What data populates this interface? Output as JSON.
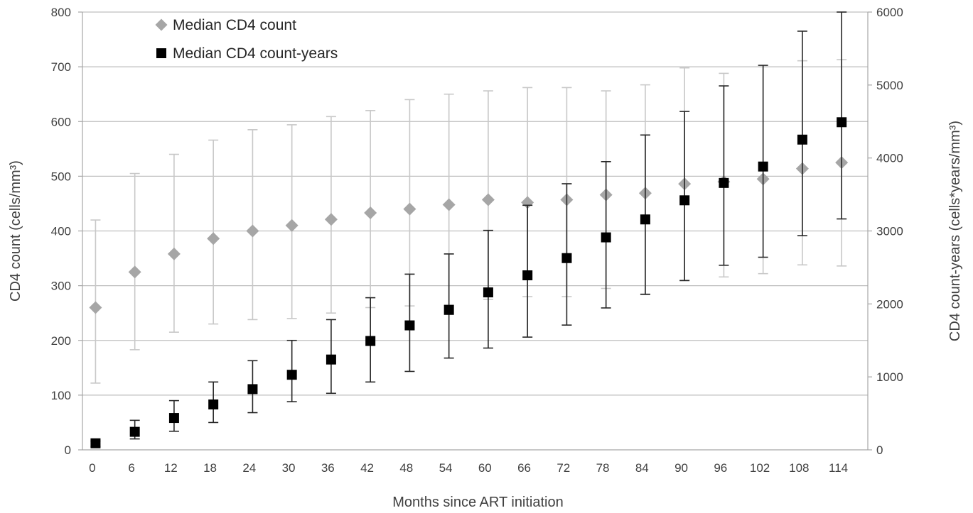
{
  "chart_data": {
    "type": "scatter",
    "xlabel": "Months since ART initiation",
    "ylabel_left": "CD4 count (cells/mm³)",
    "ylabel_right": "CD4 count-years (cells*years/mm³)",
    "x_ticks": [
      0,
      6,
      12,
      18,
      24,
      30,
      36,
      42,
      48,
      54,
      60,
      66,
      72,
      78,
      84,
      90,
      96,
      102,
      108,
      114
    ],
    "xlim": [
      0,
      120
    ],
    "ylim_left": [
      0,
      800
    ],
    "ylim_right": [
      0,
      6000
    ],
    "y_ticks_left": [
      0,
      100,
      200,
      300,
      400,
      500,
      600,
      700,
      800
    ],
    "y_ticks_right": [
      0,
      1000,
      2000,
      3000,
      4000,
      5000,
      6000
    ],
    "grid": true,
    "legend_position": "top-left",
    "series": [
      {
        "name": "Median CD4 count",
        "axis": "left",
        "marker": "diamond",
        "color": "#a6a6a6",
        "error_color": "#c8c8c8",
        "x": [
          2,
          8,
          14,
          20,
          26,
          32,
          38,
          44,
          50,
          56,
          62,
          68,
          74,
          80,
          86,
          92,
          98,
          104,
          110,
          116
        ],
        "y": [
          260,
          325,
          358,
          386,
          400,
          410,
          421,
          433,
          440,
          448,
          457,
          452,
          457,
          466,
          469,
          486,
          490,
          495,
          514,
          525
        ],
        "lower": [
          122,
          183,
          215,
          230,
          238,
          240,
          250,
          260,
          263,
          265,
          275,
          280,
          280,
          295,
          285,
          310,
          316,
          322,
          338,
          336
        ],
        "upper": [
          420,
          505,
          540,
          566,
          585,
          594,
          609,
          620,
          640,
          650,
          656,
          662,
          662,
          656,
          667,
          698,
          688,
          700,
          711,
          713
        ]
      },
      {
        "name": "Median CD4 count-years",
        "axis": "right",
        "marker": "square",
        "color": "#000000",
        "error_color": "#262626",
        "x": [
          2,
          8,
          14,
          20,
          26,
          32,
          38,
          44,
          50,
          56,
          62,
          68,
          74,
          80,
          86,
          92,
          98,
          104,
          110,
          116
        ],
        "y": [
          90,
          247,
          437,
          622,
          832,
          1029,
          1238,
          1492,
          1706,
          1918,
          2158,
          2392,
          2628,
          2912,
          3158,
          3420,
          3658,
          3883,
          4252,
          4490
        ],
        "lower": [
          45,
          150,
          255,
          375,
          510,
          660,
          775,
          930,
          1075,
          1258,
          1395,
          1545,
          1710,
          1945,
          2130,
          2320,
          2530,
          2640,
          2935,
          3165
        ],
        "upper": [
          120,
          405,
          675,
          930,
          1222,
          1500,
          1785,
          2085,
          2408,
          2685,
          3008,
          3352,
          3647,
          3950,
          4315,
          4638,
          4988,
          5270,
          5738,
          6000
        ]
      }
    ]
  }
}
